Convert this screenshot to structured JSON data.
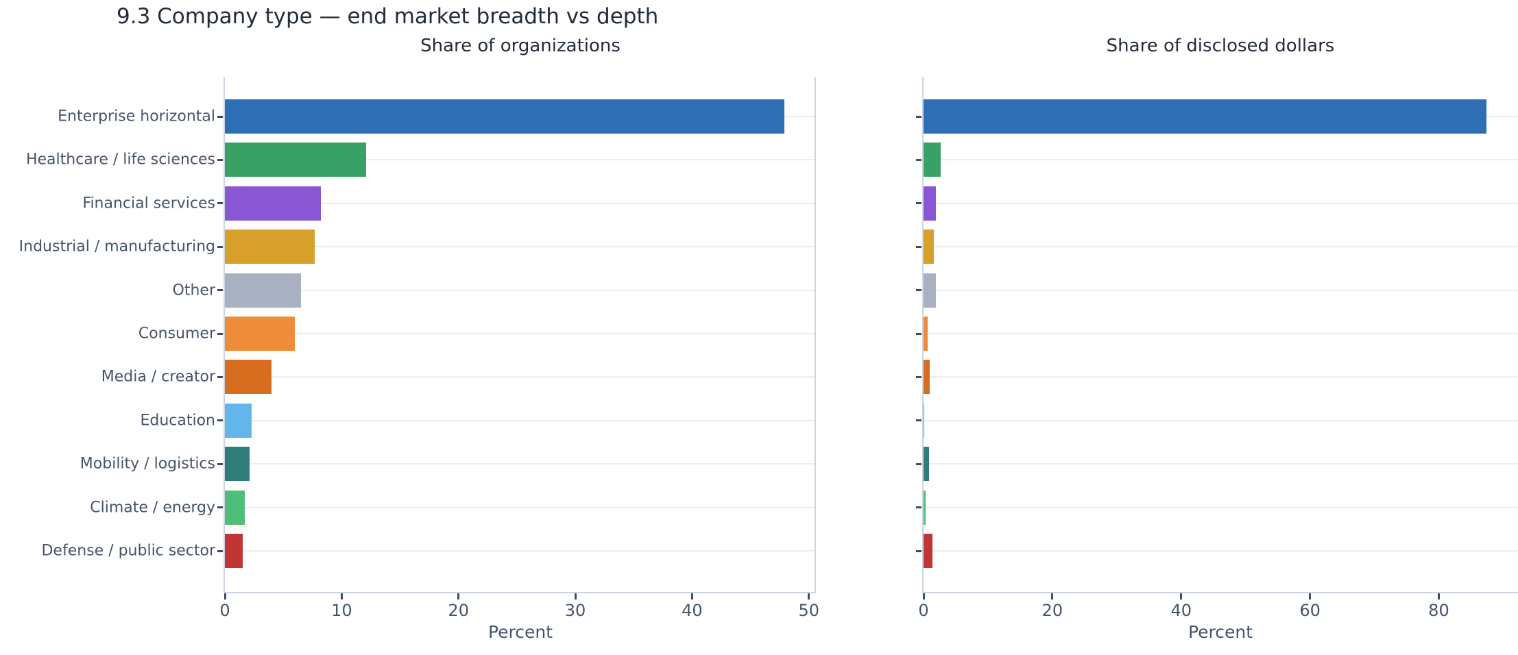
{
  "title": "9.3 Company type — end market breadth vs depth",
  "colors": {
    "background": "#ffffff",
    "title_text": "#222c3a",
    "label_text": "#46536b",
    "spine": "#cbd4e2",
    "gridline": "#e9edf4",
    "tick_mark": "#3f4b61"
  },
  "chart_data": [
    {
      "type": "bar",
      "orientation": "horizontal",
      "title": "Share of organizations",
      "xlabel": "Percent",
      "categories": [
        "Enterprise horizontal",
        "Healthcare / life sciences",
        "Financial services",
        "Industrial / manufacturing",
        "Other",
        "Consumer",
        "Media / creator",
        "Education",
        "Mobility / logistics",
        "Climate / energy",
        "Defense / public sector"
      ],
      "values": [
        47.9,
        12.1,
        8.2,
        7.7,
        6.5,
        6.0,
        4.0,
        2.3,
        2.1,
        1.7,
        1.5
      ],
      "xticks": [
        0,
        10,
        20,
        30,
        40,
        50
      ],
      "xlim": [
        0,
        50.6
      ],
      "grid": "horizontal-only",
      "legend": "none",
      "show_category_labels": true,
      "bar_colors": [
        "#2d6eb5",
        "#38a266",
        "#8a57d4",
        "#d6a02b",
        "#a7b1c2",
        "#ef8c39",
        "#d76d1e",
        "#62b6ea",
        "#2e7d7b",
        "#4fbe78",
        "#c23535"
      ]
    },
    {
      "type": "bar",
      "orientation": "horizontal",
      "title": "Share of disclosed dollars",
      "xlabel": "Percent",
      "categories": [
        "Enterprise horizontal",
        "Healthcare / life sciences",
        "Financial services",
        "Industrial / manufacturing",
        "Other",
        "Consumer",
        "Media / creator",
        "Education",
        "Mobility / logistics",
        "Climate / energy",
        "Defense / public sector"
      ],
      "values": [
        87.4,
        2.7,
        1.9,
        1.6,
        1.9,
        0.6,
        0.9,
        0.1,
        0.8,
        0.3,
        1.4
      ],
      "xticks": [
        0,
        20,
        40,
        60,
        80
      ],
      "xlim": [
        0,
        92.3
      ],
      "grid": "horizontal-only",
      "legend": "none",
      "show_category_labels": false,
      "bar_colors": [
        "#2d6eb5",
        "#38a266",
        "#8a57d4",
        "#d6a02b",
        "#a7b1c2",
        "#ef8c39",
        "#d76d1e",
        "#62b6ea",
        "#2e7d7b",
        "#4fbe78",
        "#c23535"
      ]
    }
  ]
}
